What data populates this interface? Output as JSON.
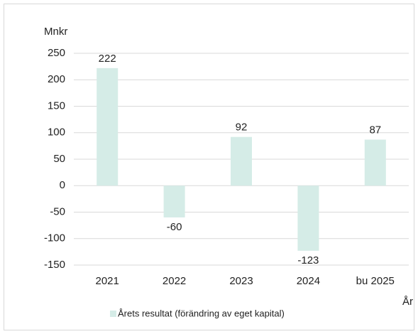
{
  "chart_data": {
    "type": "bar",
    "ylabel": "Mnkr",
    "xlabel": "År",
    "categories": [
      "2021",
      "2022",
      "2023",
      "2024",
      "bu 2025"
    ],
    "series": [
      {
        "name": "Årets resultat (förändring av eget kapital)",
        "color": "#d5ece7",
        "values": [
          222,
          -60,
          92,
          -123,
          87
        ]
      }
    ],
    "ylim": [
      -150,
      250
    ],
    "yticks": [
      -150,
      -100,
      -50,
      0,
      50,
      100,
      150,
      200,
      250
    ],
    "grid": true,
    "legend": "bottom"
  }
}
